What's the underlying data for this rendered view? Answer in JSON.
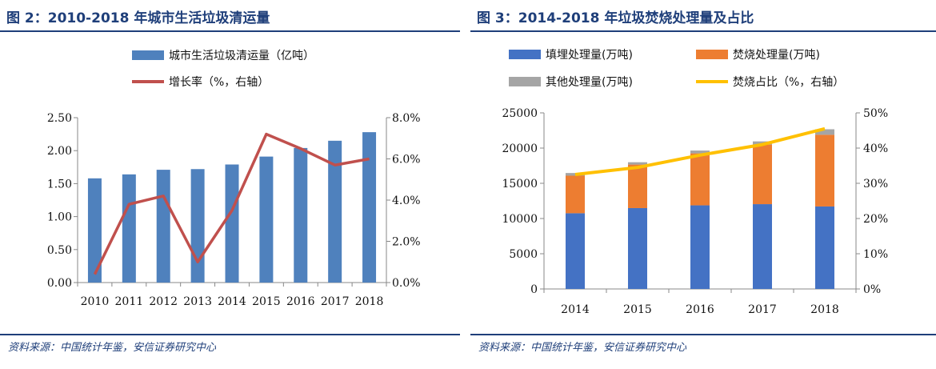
{
  "left": {
    "title": "图 2：2010-2018 年城市生活垃圾清运量",
    "source": "资料来源：中国统计年鉴，安信证券研究中心"
  },
  "right": {
    "title": "图 3：2014-2018 年垃圾焚烧处理量及占比",
    "source": "资料来源：中国统计年鉴，安信证券研究中心"
  },
  "chart_data": [
    {
      "type": "bar",
      "categories": [
        "2010",
        "2011",
        "2012",
        "2013",
        "2014",
        "2015",
        "2016",
        "2017",
        "2018"
      ],
      "series": [
        {
          "name": "城市生活垃圾清运量（亿吨）",
          "type": "bar",
          "axis": "left",
          "color": "#4f81bd",
          "values": [
            1.58,
            1.64,
            1.71,
            1.72,
            1.79,
            1.91,
            2.04,
            2.15,
            2.28
          ]
        },
        {
          "name": "增长率（%，右轴）",
          "type": "line",
          "axis": "right",
          "color": "#c0504d",
          "values": [
            0.4,
            3.8,
            4.2,
            1.0,
            3.5,
            7.2,
            6.5,
            5.7,
            6.0
          ]
        }
      ],
      "yleft": {
        "min": 0,
        "max": 2.5,
        "ticks": [
          "0.00",
          "0.50",
          "1.00",
          "1.50",
          "2.00",
          "2.50"
        ]
      },
      "yright": {
        "min": 0,
        "max": 8,
        "ticks": [
          "0.0%",
          "2.0%",
          "4.0%",
          "6.0%",
          "8.0%"
        ]
      },
      "legend_position": "top-center",
      "grid": false
    },
    {
      "type": "bar",
      "stacked": true,
      "categories": [
        "2014",
        "2015",
        "2016",
        "2017",
        "2018"
      ],
      "series": [
        {
          "name": "填埋处理量(万吨)",
          "type": "bar",
          "axis": "left",
          "color": "#4472c4",
          "values": [
            10750,
            11480,
            11870,
            12040,
            11710
          ]
        },
        {
          "name": "焚烧处理量(万吨)",
          "type": "bar",
          "axis": "left",
          "color": "#ed7d31",
          "values": [
            5330,
            6180,
            7380,
            8460,
            10180
          ]
        },
        {
          "name": "其他处理量(万吨)",
          "type": "bar",
          "axis": "left",
          "color": "#a5a5a5",
          "values": [
            380,
            330,
            400,
            450,
            780
          ]
        },
        {
          "name": "焚烧占比（%，右轴）",
          "type": "line",
          "axis": "right",
          "color": "#ffc000",
          "values": [
            32.5,
            34.5,
            38.0,
            41.0,
            45.5
          ]
        }
      ],
      "yleft": {
        "min": 0,
        "max": 25000,
        "ticks": [
          "0",
          "5000",
          "10000",
          "15000",
          "20000",
          "25000"
        ]
      },
      "yright": {
        "min": 0,
        "max": 50,
        "ticks": [
          "0%",
          "10%",
          "20%",
          "30%",
          "40%",
          "50%"
        ]
      },
      "legend_position": "top-center",
      "grid": false
    }
  ]
}
